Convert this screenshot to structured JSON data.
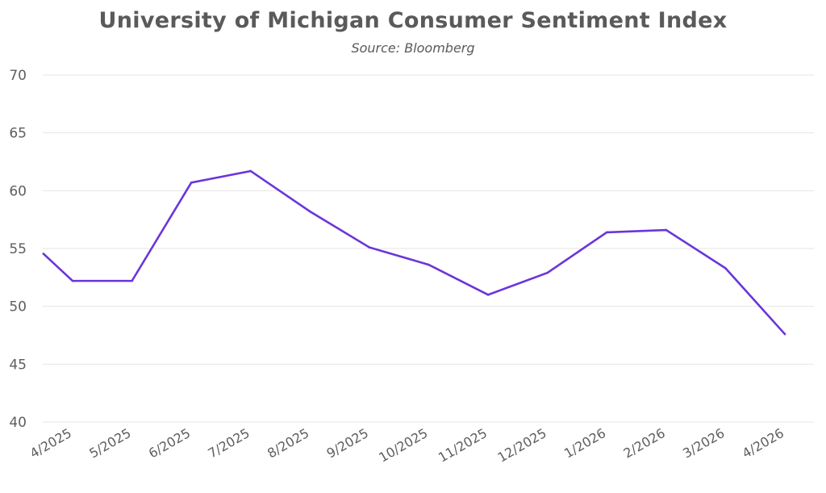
{
  "chart_data": {
    "type": "line",
    "title": "University of Michigan Consumer Sentiment Index",
    "subtitle": "Source: Bloomberg",
    "xlabel": "",
    "ylabel": "",
    "ylim": [
      40,
      70
    ],
    "yticks": [
      40,
      45,
      50,
      55,
      60,
      65,
      70
    ],
    "grid": true,
    "legend": "none",
    "categories": [
      "4/2025",
      "5/2025",
      "6/2025",
      "7/2025",
      "8/2025",
      "9/2025",
      "10/2025",
      "11/2025",
      "12/2025",
      "1/2026",
      "2/2026",
      "3/2026",
      "4/2026"
    ],
    "series": [
      {
        "name": "Consumer Sentiment",
        "color": "#6B35D9",
        "left_edge_value": 54.6,
        "values": [
          52.2,
          52.2,
          60.7,
          61.7,
          58.2,
          55.1,
          53.6,
          51.0,
          52.9,
          56.4,
          56.6,
          53.3,
          47.6
        ]
      }
    ]
  },
  "colors": {
    "line": "#6B35D9",
    "text": "#5a5a5a",
    "grid": "#e6e6e6"
  }
}
